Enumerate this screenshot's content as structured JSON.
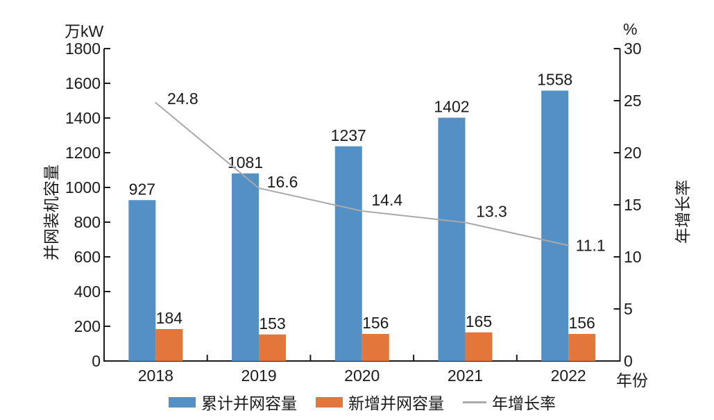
{
  "chart_data": {
    "type": "bar",
    "subtype": "grouped-bar-with-line",
    "categories": [
      "2018",
      "2019",
      "2020",
      "2021",
      "2022"
    ],
    "series": [
      {
        "name": "累计并网容量",
        "type": "bar",
        "axis": "left",
        "color": "#548FC6",
        "values": [
          927,
          1081,
          1237,
          1402,
          1558
        ]
      },
      {
        "name": "新增并网容量",
        "type": "bar",
        "axis": "left",
        "color": "#E2763B",
        "values": [
          184,
          153,
          156,
          165,
          156
        ]
      },
      {
        "name": "年增长率",
        "type": "line",
        "axis": "right",
        "color": "#A9A9A9",
        "values": [
          24.8,
          16.6,
          14.4,
          13.3,
          11.1
        ]
      }
    ],
    "left_axis": {
      "unit": "万kW",
      "label": "并网装机容量",
      "min": 0,
      "max": 1800,
      "step": 200
    },
    "right_axis": {
      "unit": "%",
      "label": "年增长率",
      "min": 0,
      "max": 30,
      "step": 5
    },
    "x_axis": {
      "label": "年份"
    },
    "legend_position": "bottom",
    "grid": false,
    "text_color": "#1A1A1A",
    "axis_color": "#1A1A1A"
  }
}
